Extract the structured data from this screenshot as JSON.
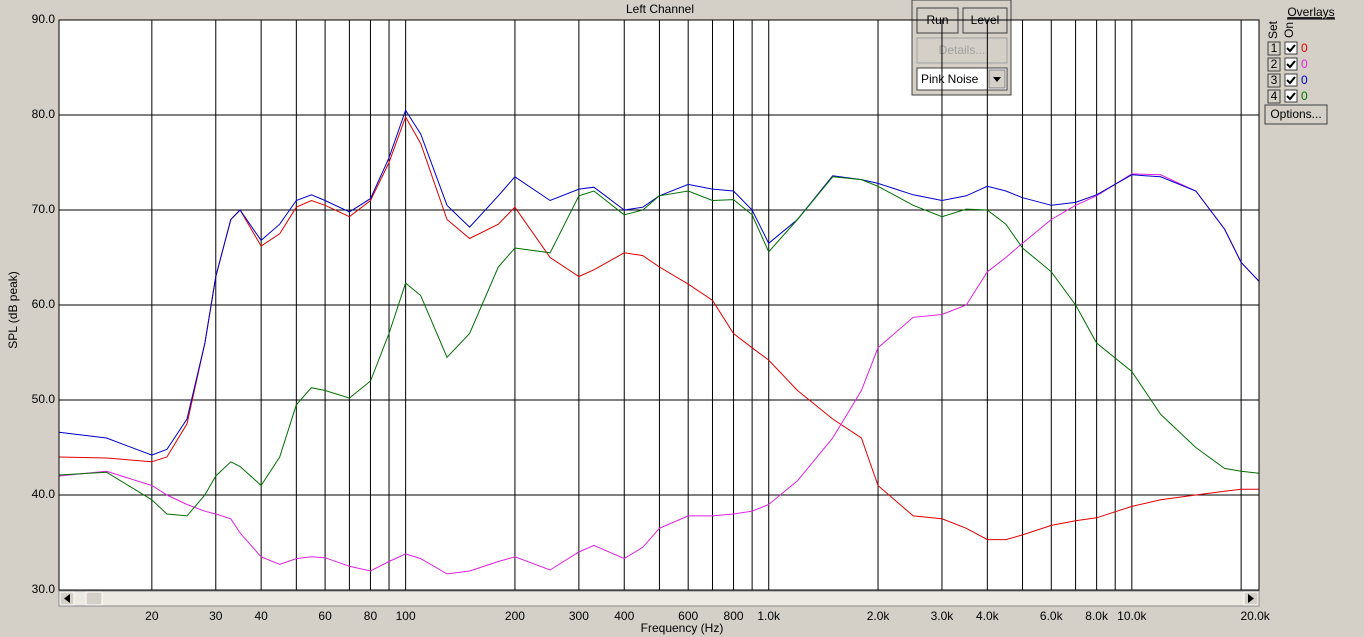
{
  "chart_data": {
    "type": "line",
    "title": "Left Channel",
    "ylabel": "SPL (dB peak)",
    "xlabel": "Frequency (Hz)",
    "xscale": "log",
    "xlim": [
      11.1,
      22400
    ],
    "ylim": [
      30,
      90
    ],
    "grid": true,
    "xticks": [
      20,
      30,
      40,
      60,
      80,
      100,
      200,
      300,
      400,
      600,
      800,
      {
        "value": 1000,
        "label": "1.0k"
      },
      {
        "value": 2000,
        "label": "2.0k"
      },
      {
        "value": 3000,
        "label": "3.0k"
      },
      {
        "value": 4000,
        "label": "4.0k"
      },
      {
        "value": 6000,
        "label": "6.0k"
      },
      {
        "value": 8000,
        "label": "8.0k"
      },
      {
        "value": 10000,
        "label": "10.0k"
      },
      {
        "value": 20000,
        "label": "20.0k"
      }
    ],
    "xminor": [
      50,
      70,
      90,
      500,
      700,
      900,
      5000,
      7000,
      9000
    ],
    "yticks": [
      {
        "value": 30,
        "label": "30.0"
      },
      {
        "value": 40,
        "label": "40.0"
      },
      {
        "value": 50,
        "label": "50.0"
      },
      {
        "value": 60,
        "label": "60.0"
      },
      {
        "value": 70,
        "label": "70.0"
      },
      {
        "value": 80,
        "label": "80.0"
      },
      {
        "value": 90,
        "label": "90.0"
      }
    ],
    "x": [
      11.1,
      15,
      20,
      22,
      25,
      28,
      30,
      33,
      35,
      40,
      45,
      50,
      55,
      60,
      70,
      80,
      90,
      100,
      110,
      130,
      150,
      180,
      200,
      250,
      300,
      330,
      400,
      450,
      500,
      600,
      700,
      800,
      900,
      1000,
      1200,
      1500,
      1800,
      2000,
      2500,
      3000,
      3500,
      4000,
      4500,
      5000,
      6000,
      7000,
      8000,
      10000,
      12000,
      15000,
      18000,
      20000,
      22400
    ],
    "series": [
      {
        "color": "#e00000",
        "values": [
          44,
          43.9,
          43.5,
          44,
          47.5,
          56,
          63,
          69,
          70,
          66.2,
          67.5,
          70.3,
          71,
          70.5,
          69.3,
          71,
          75,
          79.8,
          77,
          69,
          67,
          68.5,
          70.3,
          65,
          63,
          63.7,
          65.5,
          65.2,
          64,
          62.2,
          60.5,
          57,
          55.5,
          54.2,
          51,
          48,
          46,
          41,
          37.8,
          37.5,
          36.5,
          35.3,
          35.3,
          35.8,
          36.8,
          37.3,
          37.6,
          38.8,
          39.5,
          40,
          40.4,
          40.6,
          40.6
        ]
      },
      {
        "color": "#e020e0",
        "values": [
          42,
          42.5,
          41,
          40,
          39,
          38.3,
          38,
          37.5,
          36,
          33.5,
          32.7,
          33.3,
          33.5,
          33.4,
          32.5,
          32,
          33,
          33.8,
          33.3,
          31.7,
          32,
          33,
          33.5,
          32.1,
          34,
          34.7,
          33.3,
          34.5,
          36.5,
          37.8,
          37.8,
          38,
          38.3,
          39,
          41.5,
          46,
          51,
          55.5,
          58.7,
          59,
          60,
          63.5,
          65,
          66.5,
          69,
          70.5,
          71.5,
          73.8,
          73.7,
          72,
          68,
          64.5,
          62.5
        ]
      },
      {
        "color": "#0000cc",
        "values": [
          46.6,
          46,
          44.2,
          44.8,
          48,
          56,
          63,
          69,
          70,
          66.8,
          68.5,
          71,
          71.6,
          71,
          69.8,
          71.2,
          75.5,
          80.5,
          78,
          70.5,
          68.2,
          71.5,
          73.5,
          71,
          72.2,
          72.4,
          70,
          70.3,
          71.5,
          72.7,
          72.2,
          72,
          70,
          66.5,
          69,
          73.6,
          73.2,
          72.8,
          71.6,
          71,
          71.5,
          72.5,
          72,
          71.3,
          70.5,
          70.8,
          71.6,
          73.7,
          73.5,
          72,
          68,
          64.5,
          62.5
        ]
      },
      {
        "color": "#007000",
        "values": [
          42.1,
          42.4,
          39.5,
          38,
          37.8,
          40,
          42,
          43.5,
          43,
          41,
          44,
          49.5,
          51.3,
          51,
          50.2,
          52,
          57,
          62.3,
          61,
          54.5,
          57,
          64,
          66,
          65.5,
          71.5,
          72,
          69.5,
          70,
          71.5,
          72,
          71,
          71.1,
          69.5,
          65.6,
          69,
          73.5,
          73.2,
          72.5,
          70.5,
          69.3,
          70.1,
          70,
          68.5,
          66,
          63.5,
          60,
          56,
          53,
          48.5,
          45,
          42.8,
          42.5,
          42.3
        ]
      }
    ]
  },
  "ui": {
    "buttons": [
      "Run",
      "Level"
    ],
    "details": "Details...",
    "generator": "Pink Noise",
    "overlays": {
      "title": "Overlays",
      "set_label": "Set",
      "on_label": "On",
      "options": "Options...",
      "rows": [
        {
          "set": 1,
          "checked": true,
          "value": 0,
          "color": "#e00000"
        },
        {
          "set": 2,
          "checked": true,
          "value": 0,
          "color": "#e020e0"
        },
        {
          "set": 3,
          "checked": true,
          "value": 0,
          "color": "#0000cc"
        },
        {
          "set": 4,
          "checked": true,
          "value": 0,
          "color": "#007000"
        }
      ]
    }
  }
}
